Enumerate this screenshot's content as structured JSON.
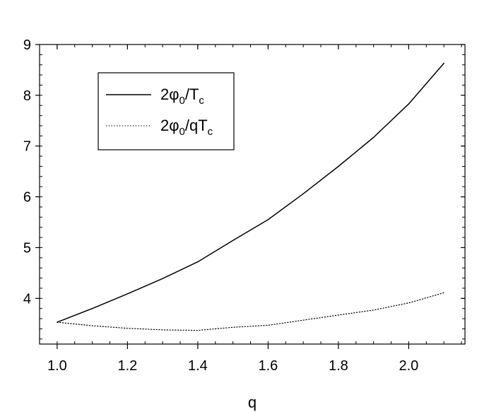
{
  "chart_data": {
    "type": "line",
    "title": "",
    "xlabel": "q",
    "ylabel": "",
    "xlim": [
      0.95,
      2.16
    ],
    "ylim": [
      3.1,
      9.0
    ],
    "grid": false,
    "legend_position": "top-left",
    "x_ticks": [
      "1.0",
      "1.2",
      "1.4",
      "1.6",
      "1.8",
      "2.0"
    ],
    "x_tick_values": [
      1.0,
      1.2,
      1.4,
      1.6,
      1.8,
      2.0
    ],
    "y_ticks": [
      "4",
      "5",
      "6",
      "7",
      "8",
      "9"
    ],
    "y_tick_values": [
      4,
      5,
      6,
      7,
      8,
      9
    ],
    "series": [
      {
        "name": "2φ0/Tc",
        "legend": {
          "main": "2φ",
          "sub1": "0",
          "mid": "/T",
          "sub2": "c"
        },
        "style": "solid",
        "color": "#000000",
        "x": [
          1.0,
          1.1,
          1.2,
          1.3,
          1.4,
          1.5,
          1.6,
          1.7,
          1.8,
          1.9,
          2.0,
          2.1
        ],
        "values": [
          3.53,
          3.8,
          4.09,
          4.39,
          4.72,
          5.14,
          5.55,
          6.06,
          6.6,
          7.17,
          7.83,
          8.63
        ]
      },
      {
        "name": "2φ0/qTc",
        "legend": {
          "main": "2φ",
          "sub1": "0",
          "mid": "/qT",
          "sub2": "c"
        },
        "style": "dotted",
        "color": "#000000",
        "x": [
          1.0,
          1.1,
          1.2,
          1.3,
          1.4,
          1.5,
          1.6,
          1.7,
          1.8,
          1.9,
          2.0,
          2.1
        ],
        "values": [
          3.53,
          3.46,
          3.41,
          3.38,
          3.37,
          3.43,
          3.47,
          3.57,
          3.67,
          3.77,
          3.91,
          4.11
        ]
      }
    ]
  }
}
